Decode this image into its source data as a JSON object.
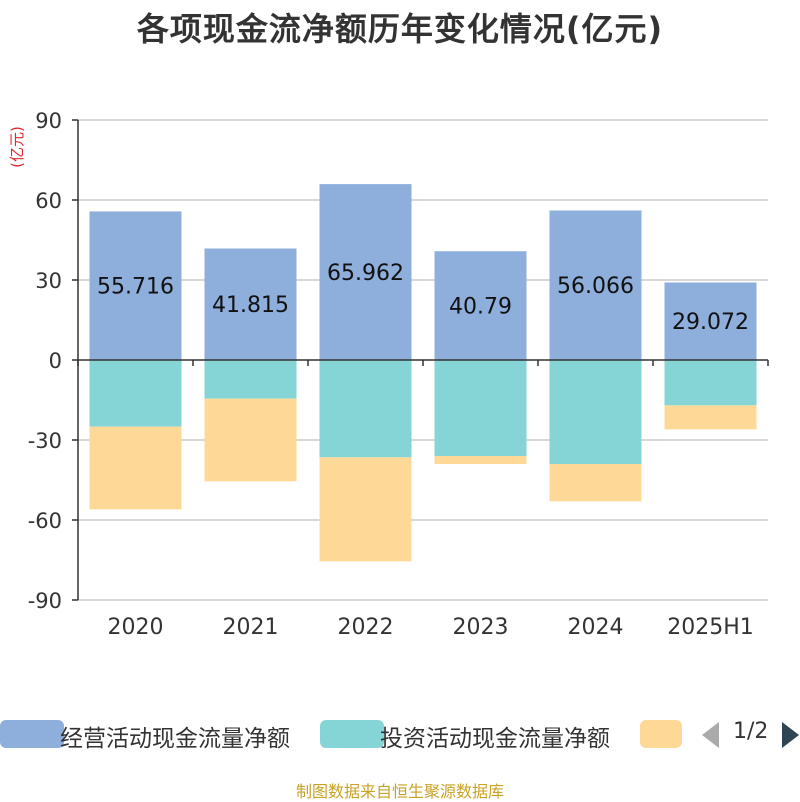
{
  "title": "各项现金流净额历年变化情况(亿元)",
  "source_note": "制图数据来自恒生聚源数据库",
  "legend": {
    "items": [
      {
        "label": "经营活动现金流量净额",
        "color": "#8eaedb"
      },
      {
        "label": "投资活动现金流量净额",
        "color": "#86d5d6"
      },
      {
        "label": "",
        "color": "#fdd897"
      }
    ],
    "page_indicator": "1/2"
  },
  "chart_data": {
    "type": "bar",
    "stacked": true,
    "title": "各项现金流净额历年变化情况(亿元)",
    "ylabel": "(亿元)",
    "xlabel": "",
    "ylim": [
      -90,
      90
    ],
    "yticks": [
      90,
      60,
      30,
      0,
      -30,
      -60,
      -90
    ],
    "grid": true,
    "legend_position": "bottom",
    "categories": [
      "2020",
      "2021",
      "2022",
      "2023",
      "2024",
      "2025H1"
    ],
    "series": [
      {
        "name": "经营活动现金流量净额",
        "color": "#8eaedb",
        "values": [
          55.716,
          41.815,
          65.962,
          40.79,
          56.066,
          29.072
        ],
        "labels": [
          "55.716",
          "41.815",
          "65.962",
          "40.79",
          "56.066",
          "29.072"
        ]
      },
      {
        "name": "投资活动现金流量净额",
        "color": "#86d5d6",
        "values": [
          -25,
          -14.5,
          -36.5,
          -36,
          -39,
          -17
        ]
      },
      {
        "color": "#fdd897",
        "values": [
          -31,
          -31,
          -39,
          -3,
          -14,
          -9
        ]
      }
    ]
  }
}
